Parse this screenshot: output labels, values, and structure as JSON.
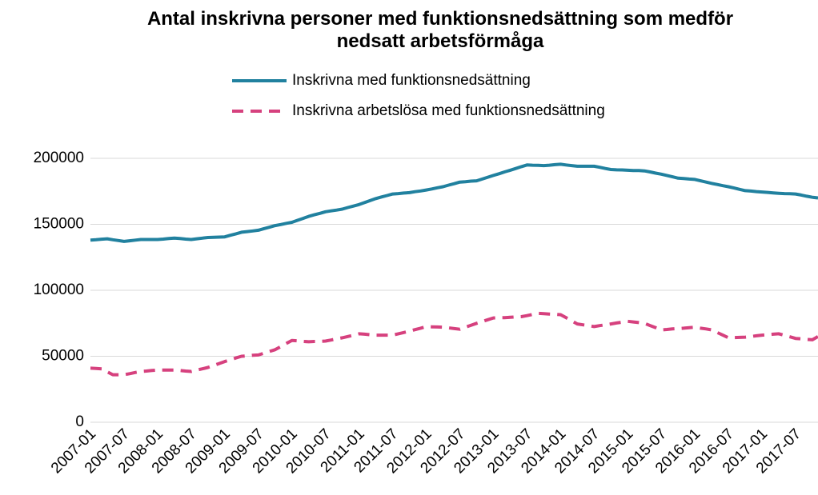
{
  "chart_data": {
    "type": "line",
    "title": "Antal inskrivna personer med funktionsnedsättning som medför nedsatt arbetsförmåga",
    "categories": [
      "2007-01",
      null,
      null,
      null,
      null,
      null,
      "2007-07",
      null,
      null,
      null,
      null,
      null,
      "2008-01",
      null,
      null,
      null,
      null,
      null,
      "2008-07",
      null,
      null,
      null,
      null,
      null,
      "2009-01",
      null,
      null,
      null,
      null,
      null,
      "2009-07",
      null,
      null,
      null,
      null,
      null,
      "2010-01",
      null,
      null,
      null,
      null,
      null,
      "2010-07",
      null,
      null,
      null,
      null,
      null,
      "2011-01",
      null,
      null,
      null,
      null,
      null,
      "2011-07",
      null,
      null,
      null,
      null,
      null,
      "2012-01",
      null,
      null,
      null,
      null,
      null,
      "2012-07",
      null,
      null,
      null,
      null,
      null,
      "2013-01",
      null,
      null,
      null,
      null,
      null,
      "2013-07",
      null,
      null,
      null,
      null,
      null,
      "2014-01",
      null,
      null,
      null,
      null,
      null,
      "2014-07",
      null,
      null,
      null,
      null,
      null,
      "2015-01",
      null,
      null,
      null,
      null,
      null,
      "2015-07",
      null,
      null,
      null,
      null,
      null,
      "2016-01",
      null,
      null,
      null,
      null,
      null,
      "2016-07",
      null,
      null,
      null,
      null,
      null,
      "2017-01",
      null,
      null,
      null,
      null,
      null,
      "2017-07",
      null,
      null,
      null,
      null
    ],
    "series": [
      {
        "name": "Inskrivna med funktionsnedsättning",
        "color": "#21819f",
        "dashed": false,
        "values": [
          138000,
          138300,
          138700,
          139000,
          138300,
          137700,
          137000,
          137500,
          138000,
          138500,
          138500,
          138500,
          138500,
          138800,
          139200,
          139500,
          139200,
          138800,
          138500,
          139000,
          139500,
          140000,
          140200,
          140300,
          140500,
          141700,
          142800,
          144000,
          144500,
          145000,
          145500,
          146700,
          147800,
          149000,
          149800,
          150700,
          151500,
          153000,
          154500,
          156000,
          157200,
          158300,
          159500,
          160200,
          160800,
          161500,
          162700,
          163800,
          165000,
          166500,
          168000,
          169500,
          170700,
          171800,
          173000,
          173300,
          173700,
          174000,
          174700,
          175300,
          176000,
          176800,
          177700,
          178500,
          179700,
          180800,
          182000,
          182300,
          182700,
          183000,
          184300,
          185700,
          187000,
          188300,
          189700,
          191000,
          192300,
          193700,
          195000,
          194800,
          194700,
          194500,
          194800,
          195200,
          195500,
          195000,
          194500,
          194000,
          194000,
          194000,
          194000,
          193200,
          192300,
          191500,
          191300,
          191200,
          191000,
          190800,
          190700,
          190500,
          189700,
          188800,
          188000,
          187000,
          186000,
          185000,
          184700,
          184300,
          184000,
          183000,
          182000,
          181000,
          180200,
          179300,
          178500,
          177500,
          176500,
          175500,
          175200,
          174800,
          174500,
          174200,
          173800,
          173500,
          173300,
          173200,
          173000,
          172200,
          171300,
          170500,
          170000
        ]
      },
      {
        "name": "Inskrivna arbetslösa med funktionsnedsättning",
        "color": "#d6417e",
        "dashed": true,
        "values": [
          41000,
          40800,
          40500,
          38200,
          36000,
          36000,
          36000,
          36800,
          37700,
          38500,
          38800,
          39200,
          39500,
          39500,
          39500,
          39500,
          39200,
          38800,
          38500,
          39500,
          40500,
          41500,
          43000,
          44500,
          46000,
          47300,
          48700,
          50000,
          50300,
          50700,
          51000,
          52300,
          53700,
          55000,
          57300,
          59700,
          62000,
          61700,
          61300,
          61000,
          61200,
          61300,
          61500,
          62300,
          63200,
          64000,
          65000,
          66000,
          67000,
          66700,
          66300,
          66000,
          66000,
          66000,
          66000,
          67000,
          68000,
          69000,
          70200,
          71300,
          72500,
          72300,
          72200,
          72000,
          71500,
          71000,
          70500,
          72000,
          73500,
          75000,
          76300,
          77700,
          79000,
          79200,
          79300,
          79500,
          79800,
          80000,
          80800,
          81700,
          82500,
          82300,
          82000,
          81800,
          81500,
          79200,
          76800,
          74500,
          73800,
          73200,
          72500,
          73200,
          73800,
          74500,
          75200,
          75800,
          76500,
          76000,
          75500,
          75000,
          73300,
          71700,
          70000,
          70300,
          70700,
          71000,
          71300,
          71700,
          72000,
          71300,
          70700,
          70000,
          68000,
          66000,
          64000,
          64200,
          64300,
          64500,
          65000,
          65500,
          66000,
          66300,
          66700,
          67000,
          65800,
          64700,
          63500,
          63200,
          62800,
          62500,
          65000
        ]
      }
    ],
    "ylim": [
      0,
      200000
    ],
    "yticks": [
      0,
      50000,
      100000,
      150000,
      200000
    ],
    "grid": true,
    "legend": "top"
  }
}
